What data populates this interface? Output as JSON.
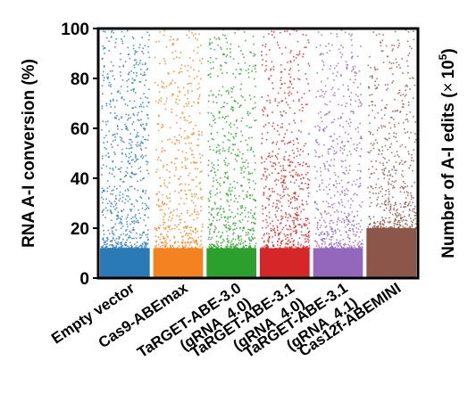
{
  "chart_data": {
    "type": "scatter",
    "style": "per-site jitter strip plot with points stacked into a solid block at low conversion",
    "categories": [
      "Empty vector",
      "Cas9-ABEmax",
      "TaRGET-ABE-3.0\n(gRNA_4.0)",
      "TaRGET-ABE-3.1\n(gRNA_4.0)",
      "TaRGET-ABE-3.1\n(gRNA_4.1)",
      "Cas12f-ABEMINI"
    ],
    "colors": [
      "#2a7ab8",
      "#f58220",
      "#2ca02c",
      "#d62728",
      "#9467bd",
      "#8c564b"
    ],
    "dense_band_top": [
      12,
      12,
      12,
      12,
      12,
      20
    ],
    "ylabel": "RNA A-I conversion (%)",
    "ylim": [
      0,
      100
    ],
    "yticks": [
      0,
      20,
      40,
      60,
      80,
      100
    ],
    "y2label": "Number of A-I edits (×10⁵)",
    "y2label_parts": {
      "text": "Number of A-I edits (",
      "times": "×",
      "base": "10",
      "exp": "5",
      "close": ")"
    },
    "grid": false,
    "legend": "none"
  }
}
